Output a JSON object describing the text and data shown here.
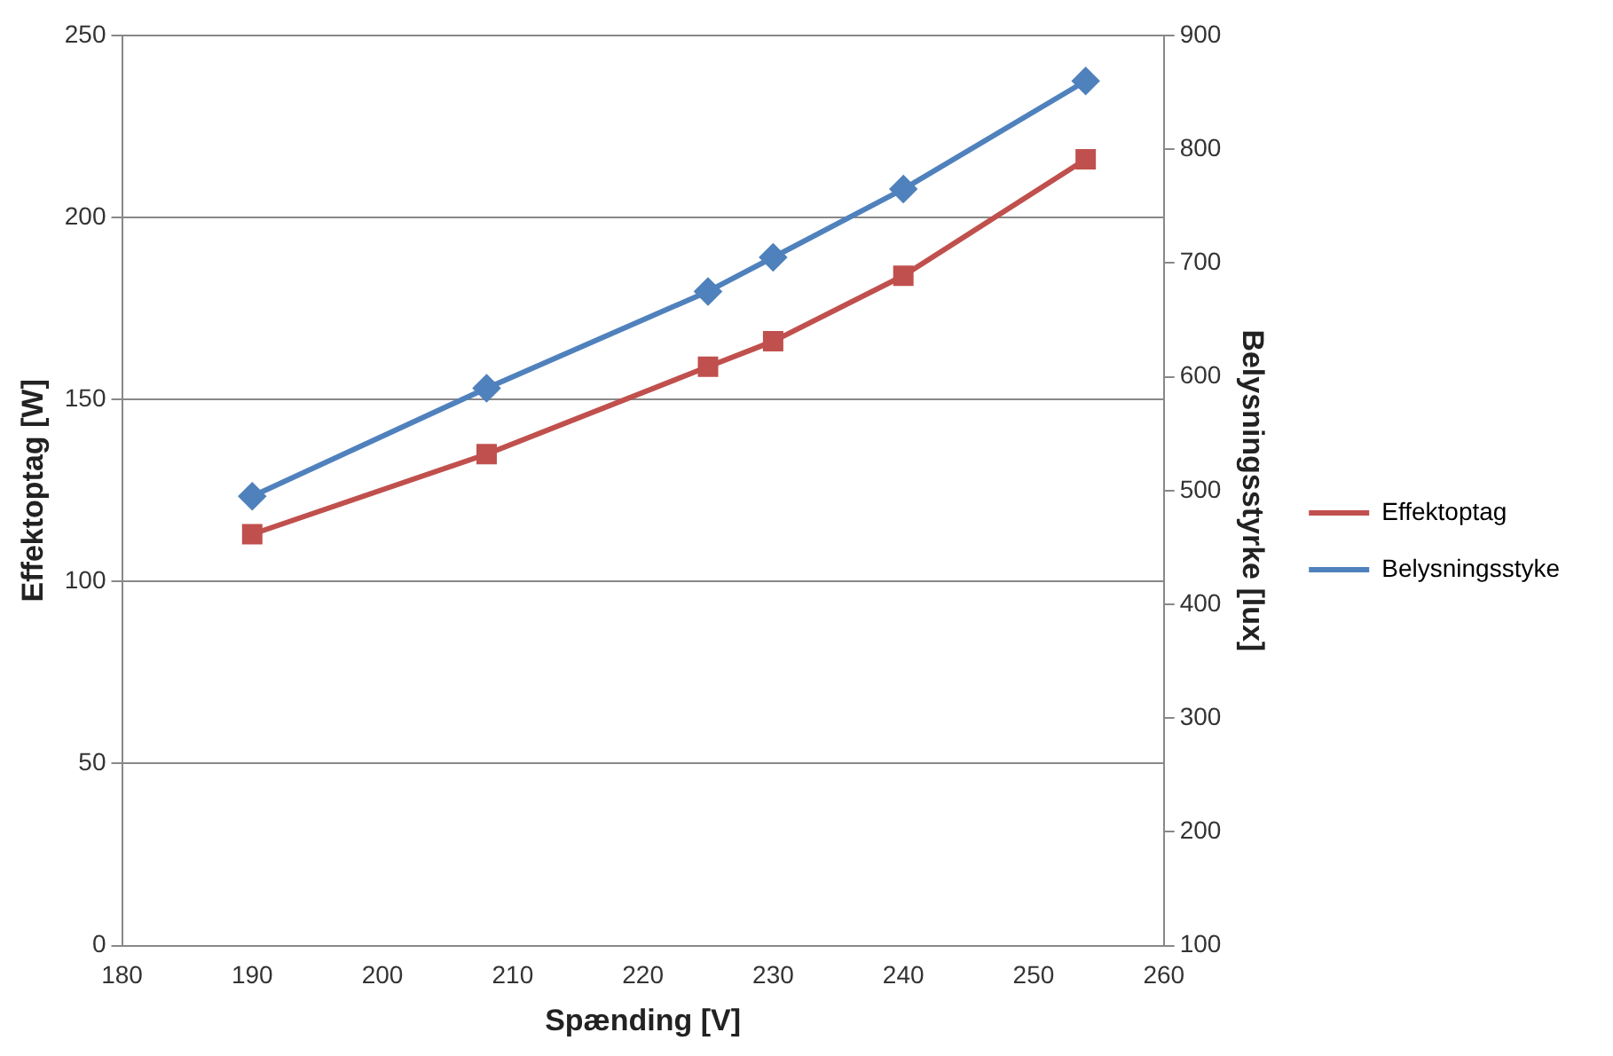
{
  "chart_data": {
    "type": "line",
    "xlabel": "Spænding [V]",
    "ylabel": "Effektoptag [W]",
    "y2label": "Belysningsstyrke [lux]",
    "x": [
      190,
      208,
      225,
      230,
      240,
      254
    ],
    "series": [
      {
        "name": "Effektoptag",
        "color": "#c0504d",
        "values": [
          113,
          135,
          159,
          166,
          184,
          216
        ],
        "marker": "square"
      },
      {
        "name": "Belysningsstyke",
        "color": "#4f81bd",
        "values": [
          495,
          590,
          675,
          705,
          765,
          860
        ],
        "axis": "y2",
        "marker": "diamond"
      }
    ],
    "xlim": [
      180,
      260
    ],
    "xticks": [
      180,
      190,
      200,
      210,
      220,
      230,
      240,
      250,
      260
    ],
    "ylim": [
      0,
      250
    ],
    "yticks": [
      0,
      50,
      100,
      150,
      200,
      250
    ],
    "y2lim": [
      100,
      900
    ],
    "y2ticks": [
      100,
      200,
      300,
      400,
      500,
      600,
      700,
      800,
      900
    ],
    "grid": "y",
    "legend": "right"
  }
}
